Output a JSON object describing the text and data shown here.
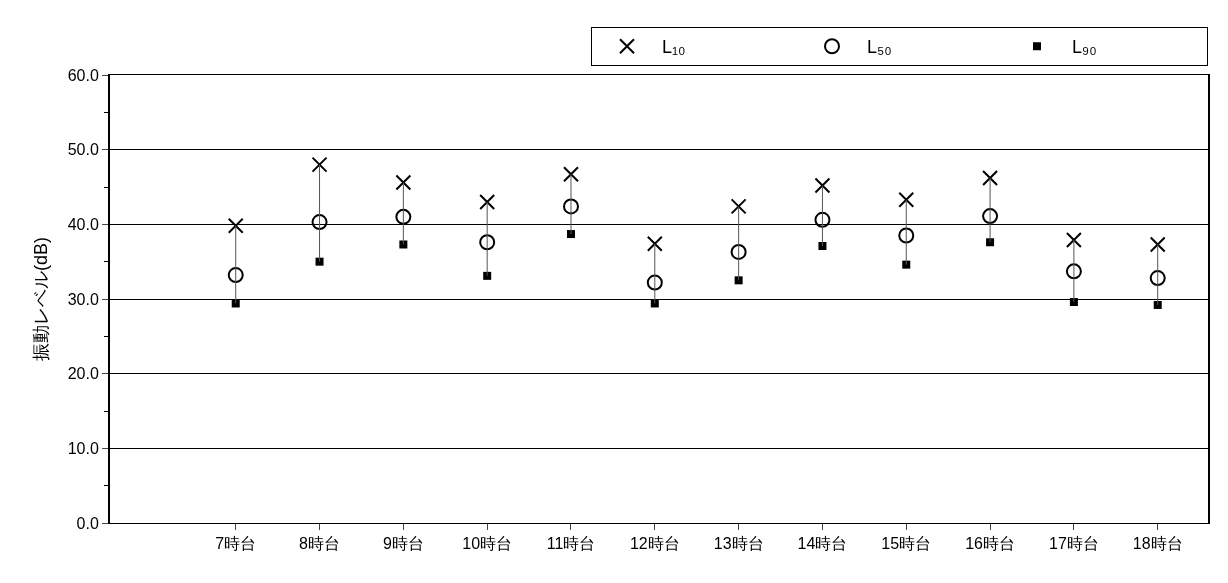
{
  "chart_data": {
    "type": "scatter",
    "ylabel": "振動レベル(dB)",
    "categories": [
      "7時台",
      "8時台",
      "9時台",
      "10時台",
      "11時台",
      "12時台",
      "13時台",
      "14時台",
      "15時台",
      "16時台",
      "17時台",
      "18時台"
    ],
    "series": [
      {
        "name": "L₁₀",
        "color": "#000000",
        "marker": "cross",
        "values": [
          39.8,
          48.0,
          45.6,
          43.0,
          46.7,
          37.4,
          42.4,
          45.2,
          43.3,
          46.2,
          37.9,
          37.3
        ]
      },
      {
        "name": "L₅₀",
        "color": "#000000",
        "marker": "circle",
        "values": [
          33.2,
          40.3,
          41.0,
          37.6,
          42.4,
          32.2,
          36.3,
          40.6,
          38.5,
          41.1,
          33.7,
          32.8
        ]
      },
      {
        "name": "L₉₀",
        "color": "#000000",
        "marker": "square",
        "values": [
          29.4,
          35.0,
          37.3,
          33.1,
          38.7,
          29.4,
          32.5,
          37.1,
          34.6,
          37.6,
          29.6,
          29.2
        ]
      }
    ],
    "ylim": [
      0,
      60
    ],
    "yticks": [
      {
        "value": 0,
        "label": "0.0"
      },
      {
        "value": 10,
        "label": "10.0"
      },
      {
        "value": 20,
        "label": "20.0"
      },
      {
        "value": 30,
        "label": "30.0"
      },
      {
        "value": 40,
        "label": "40.0"
      },
      {
        "value": 50,
        "label": "50.0"
      },
      {
        "value": 60,
        "label": "60.0"
      }
    ],
    "grid": "y",
    "legend": "top right"
  }
}
